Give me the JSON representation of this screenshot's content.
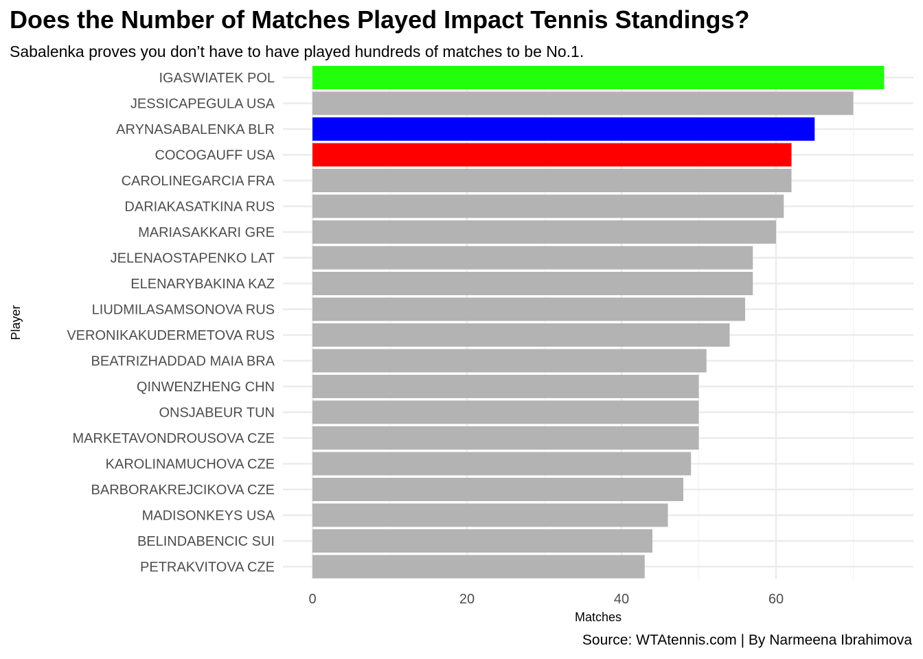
{
  "chart_data": {
    "type": "bar",
    "orientation": "horizontal",
    "title": "Does the Number of Matches Played Impact Tennis Standings?",
    "subtitle": "Sabalenka proves you don’t have to have played hundreds of matches to be No.1.",
    "caption": "Source: WTAtennis.com | By Narmeena Ibrahimova",
    "xlabel": "Matches",
    "ylabel": "Player",
    "xlim": [
      0,
      78
    ],
    "xticks": [
      0,
      20,
      40,
      60
    ],
    "grid": true,
    "legend": "none",
    "default_color": "#B3B3B3",
    "categories": [
      "IGASWIATEK POL",
      "JESSICAPEGULA USA",
      "ARYNASABALENKA BLR",
      "COCOGAUFF USA",
      "CAROLINEGARCIA FRA",
      "DARIAKASATKINA RUS",
      "MARIASAKKARI GRE",
      "JELENAOSTAPENKO LAT",
      "ELENARYBAKINA KAZ",
      "LIUDMILASAMSONOVA RUS",
      "VERONIKAKUDERMETOVA RUS",
      "BEATRIZHADDAD MAIA BRA",
      "QINWENZHENG CHN",
      "ONSJABEUR TUN",
      "MARKETAVONDROUSOVA CZE",
      "KAROLINAMUCHOVA CZE",
      "BARBORAKREJCIKOVA CZE",
      "MADISONKEYS USA",
      "BELINDABENCIC SUI",
      "PETRAKVITOVA CZE"
    ],
    "values": [
      74,
      70,
      65,
      62,
      62,
      61,
      60,
      57,
      57,
      56,
      54,
      51,
      50,
      50,
      50,
      49,
      48,
      46,
      44,
      43
    ],
    "colors": [
      "#22FF0A",
      "#B3B3B3",
      "#0000FF",
      "#FF0000",
      "#B3B3B3",
      "#B3B3B3",
      "#B3B3B3",
      "#B3B3B3",
      "#B3B3B3",
      "#B3B3B3",
      "#B3B3B3",
      "#B3B3B3",
      "#B3B3B3",
      "#B3B3B3",
      "#B3B3B3",
      "#B3B3B3",
      "#B3B3B3",
      "#B3B3B3",
      "#B3B3B3",
      "#B3B3B3"
    ]
  }
}
